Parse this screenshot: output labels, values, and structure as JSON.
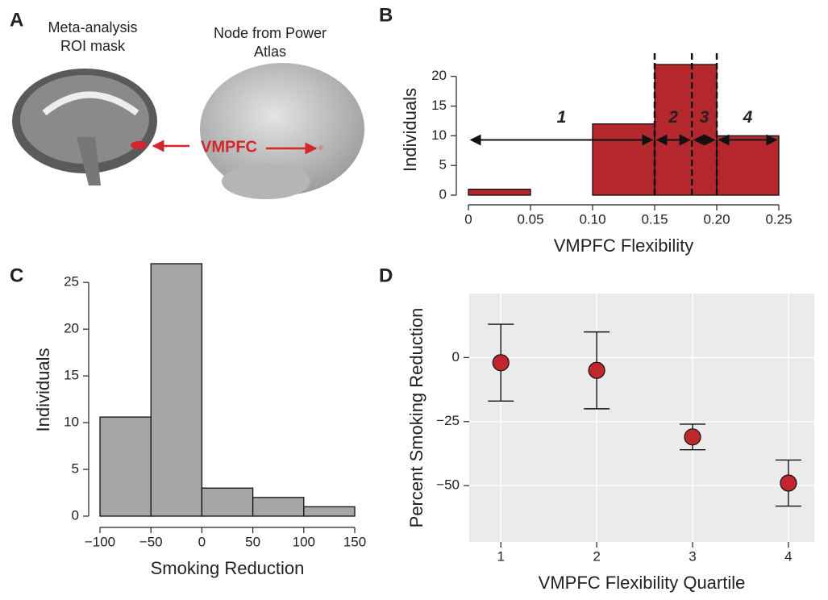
{
  "panel_a": {
    "label": "A",
    "mask_title": [
      "Meta-analysis",
      "ROI mask"
    ],
    "node_title": [
      "Node from Power",
      "Atlas"
    ],
    "region": "VMPFC"
  },
  "chart_data": [
    {
      "type": "histogram",
      "panel": "B",
      "xlabel": "VMPFC Flexibility",
      "ylabel": "Individuals",
      "bins": [
        0,
        0.05,
        0.1,
        0.15,
        0.2,
        0.25
      ],
      "values": [
        1,
        0,
        12,
        22,
        10
      ],
      "color": "#b3272d",
      "xlim": [
        0,
        0.25
      ],
      "ylim": [
        0,
        22
      ],
      "xticks": [
        0,
        0.05,
        {
          "value": 0.1,
          "label": "0.10"
        },
        0.15,
        {
          "value": 0.2,
          "label": "0.20"
        },
        0.25
      ],
      "yticks": [
        0,
        5,
        10,
        15,
        20
      ],
      "cutoffs": [
        0.15,
        0.18,
        0.2
      ],
      "quartiles": [
        {
          "label": "1",
          "range": [
            0,
            0.15
          ]
        },
        {
          "label": "2",
          "range": [
            0.15,
            0.18
          ]
        },
        {
          "label": "3",
          "range": [
            0.18,
            0.2
          ]
        },
        {
          "label": "4",
          "range": [
            0.2,
            0.25
          ]
        }
      ]
    },
    {
      "type": "histogram",
      "panel": "C",
      "xlabel": "Smoking Reduction",
      "ylabel": "Individuals",
      "bins": [
        -100,
        -50,
        0,
        50,
        100,
        150
      ],
      "values": [
        10.6,
        27,
        3,
        2,
        1
      ],
      "color": "#a6a6a6",
      "xlim": [
        -100,
        150
      ],
      "ylim": [
        0,
        27
      ],
      "xticks": [
        {
          "value": -100,
          "label": "−100"
        },
        {
          "value": -50,
          "label": "−50"
        },
        0,
        50,
        100,
        150
      ],
      "yticks": [
        0,
        5,
        10,
        15,
        20,
        25
      ]
    },
    {
      "type": "scatter",
      "panel": "D",
      "xlabel": "VMPFC Flexibility Quartile",
      "ylabel": "Percent Smoking Reduction",
      "x": [
        1,
        2,
        3,
        4
      ],
      "values": [
        -2,
        -5,
        -31,
        -49
      ],
      "errors": [
        15,
        15,
        5,
        9
      ],
      "color": "#c0272d",
      "xlim": [
        0.67,
        4.27
      ],
      "ylim": [
        -72,
        25
      ],
      "xticks": [
        1,
        2,
        3,
        4
      ],
      "yticks": [
        0,
        {
          "value": -25,
          "label": "−25"
        },
        {
          "value": -50,
          "label": "−50"
        }
      ],
      "grid": true,
      "background": "#ebebeb"
    }
  ]
}
